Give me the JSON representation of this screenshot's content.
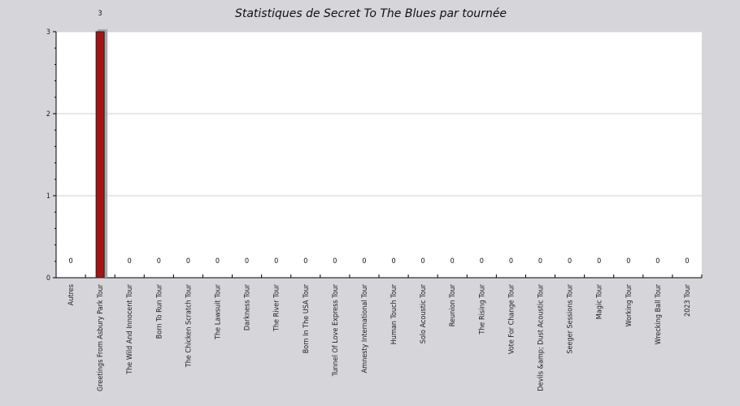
{
  "chart_data": {
    "type": "bar",
    "title": "Statistiques de Secret To The Blues par tournée",
    "xlabel": "",
    "ylabel": "",
    "ylim": [
      0,
      3
    ],
    "yticks": [
      0,
      1,
      2,
      3
    ],
    "grid": true,
    "colors": {
      "bar": "#a31515",
      "bar_shadow": "#a8a8a8",
      "page_bg": "#d6d5da",
      "plot_bg": "#ffffff"
    },
    "categories": [
      "Autres",
      "Greetings From Asbury Park Tour",
      "The Wild And Innocent Tour",
      "Born To Run Tour",
      "The Chicken Scratch Tour",
      "The Lawsuit Tour",
      "Darkness Tour",
      "The River Tour",
      "Born In The USA Tour",
      "Tunnel Of Love Express Tour",
      "Amnesty International Tour",
      "Human Touch Tour",
      "Solo Acoustic Tour",
      "Reunion Tour",
      "The Rising Tour",
      "Vote For Change Tour",
      "Devils &amp; Dust Acoustic Tour",
      "Seeger Sessions Tour",
      "Magic Tour",
      "Working Tour",
      "Wrecking Ball Tour",
      "2023 Tour"
    ],
    "values": [
      0,
      3,
      0,
      0,
      0,
      0,
      0,
      0,
      0,
      0,
      0,
      0,
      0,
      0,
      0,
      0,
      0,
      0,
      0,
      0,
      0,
      0
    ]
  }
}
